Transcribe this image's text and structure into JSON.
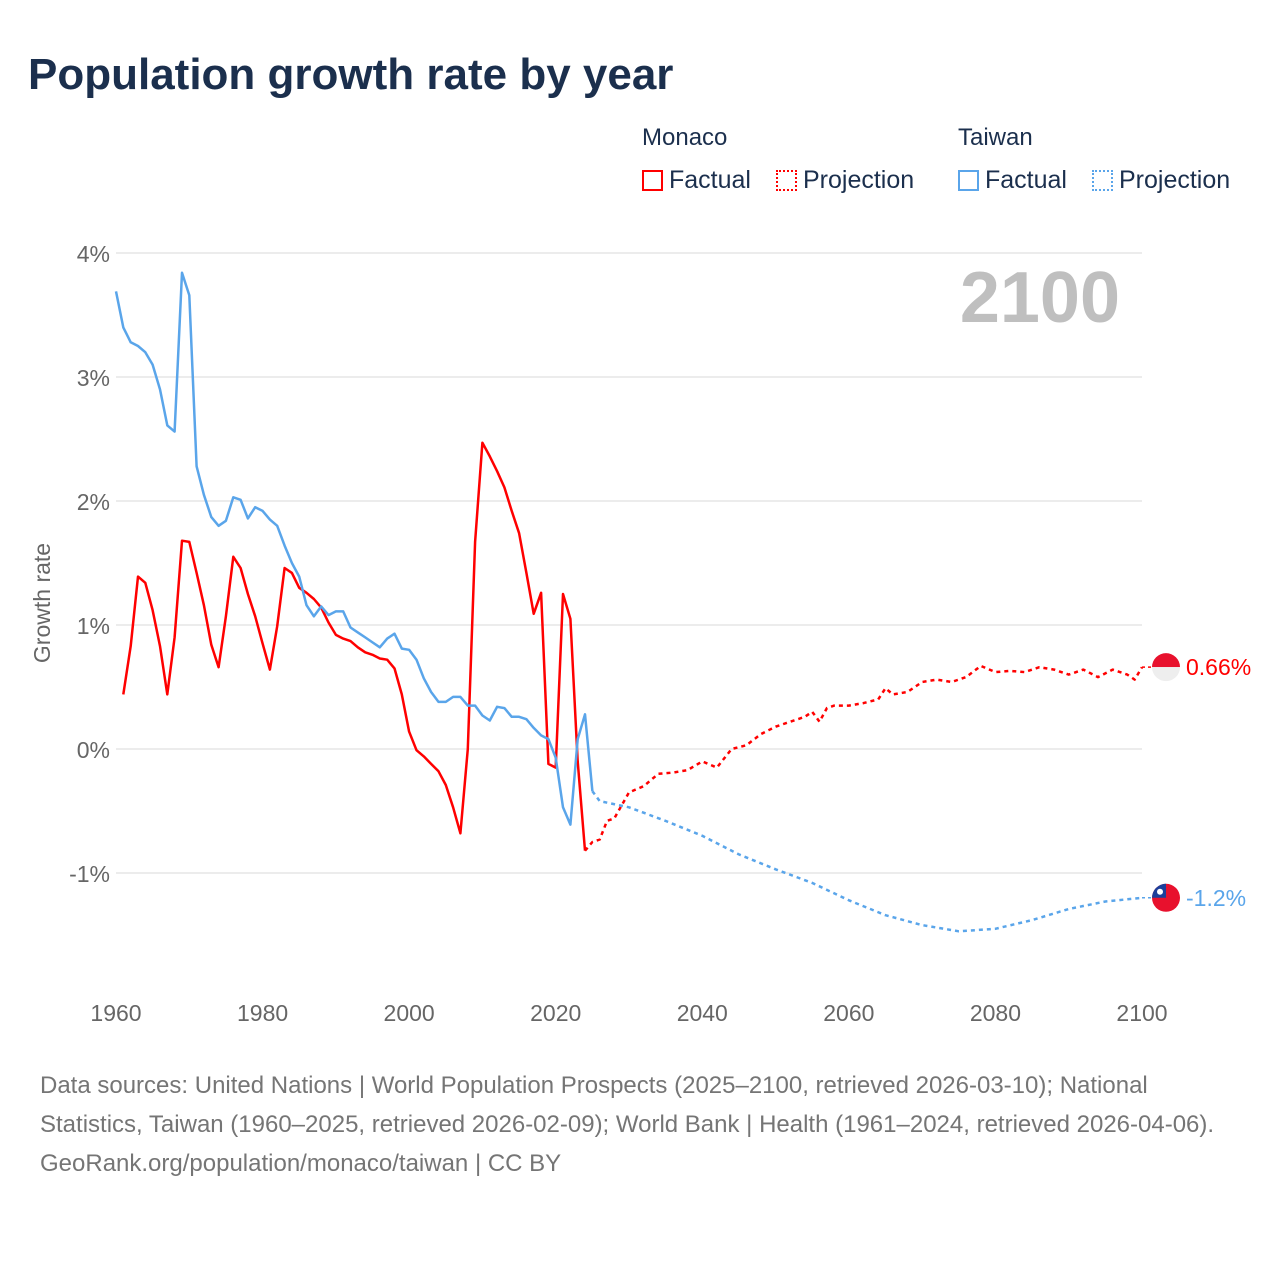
{
  "title": "Population growth rate by year",
  "legend": {
    "groups": [
      {
        "country": "Monaco",
        "factual": "Factual",
        "projection": "Projection",
        "color": "#ff0000"
      },
      {
        "country": "Taiwan",
        "factual": "Factual",
        "projection": "Projection",
        "color": "#5aa5ea"
      }
    ]
  },
  "footer": {
    "sources": "Data sources: United Nations | World Population Prospects (2025–2100, retrieved 2026-03-10); National Statistics, Taiwan (1960–2025, retrieved 2026-02-09); World Bank | Health (1961–2024, retrieved 2026-04-06).",
    "credit": "GeoRank.org/population/monaco/taiwan | CC BY"
  },
  "chart_data": {
    "type": "line",
    "title": "Population growth rate by year",
    "ylabel": "Growth rate",
    "xlabel": "",
    "year_label": "2100",
    "xlim": [
      1960,
      2100
    ],
    "ylim": [
      -1.8,
      4.0
    ],
    "x_ticks": [
      "1960",
      "1980",
      "2000",
      "2020",
      "2040",
      "2060",
      "2080",
      "2100"
    ],
    "y_ticks": [
      {
        "v": 4,
        "label": "4%"
      },
      {
        "v": 3,
        "label": "3%"
      },
      {
        "v": 2,
        "label": "2%"
      },
      {
        "v": 1,
        "label": "1%"
      },
      {
        "v": 0,
        "label": "0%"
      },
      {
        "v": -1,
        "label": "-1%"
      }
    ],
    "grid": true,
    "legend_position": "top-right",
    "series": [
      {
        "name": "Monaco Factual",
        "country": "Monaco",
        "kind": "factual",
        "color": "#ff0000",
        "x": [
          1961,
          1962,
          1963,
          1964,
          1965,
          1966,
          1967,
          1968,
          1969,
          1970,
          1971,
          1972,
          1973,
          1974,
          1975,
          1976,
          1977,
          1978,
          1979,
          1980,
          1981,
          1982,
          1983,
          1984,
          1985,
          1986,
          1987,
          1988,
          1989,
          1990,
          1991,
          1992,
          1993,
          1994,
          1995,
          1996,
          1997,
          1998,
          1999,
          2000,
          2001,
          2002,
          2003,
          2004,
          2005,
          2006,
          2007,
          2008,
          2009,
          2010,
          2011,
          2012,
          2013,
          2014,
          2015,
          2016,
          2017,
          2018,
          2019,
          2020,
          2021,
          2022,
          2023,
          2024
        ],
        "y": [
          0.44,
          0.83,
          1.39,
          1.34,
          1.12,
          0.83,
          0.44,
          0.9,
          1.68,
          1.67,
          1.42,
          1.16,
          0.84,
          0.66,
          1.07,
          1.55,
          1.46,
          1.25,
          1.07,
          0.85,
          0.64,
          0.99,
          1.46,
          1.42,
          1.3,
          1.26,
          1.21,
          1.14,
          1.02,
          0.92,
          0.89,
          0.87,
          0.82,
          0.78,
          0.76,
          0.73,
          0.72,
          0.65,
          0.44,
          0.14,
          -0.01,
          -0.06,
          -0.12,
          -0.18,
          -0.29,
          -0.47,
          -0.68,
          0.0,
          1.67,
          2.47,
          2.36,
          2.24,
          2.11,
          1.92,
          1.74,
          1.42,
          1.09,
          1.26,
          -0.12,
          -0.15,
          1.25,
          1.05,
          -0.1,
          -0.82
        ]
      },
      {
        "name": "Monaco Projection",
        "country": "Monaco",
        "kind": "projection",
        "color": "#ff0000",
        "x": [
          2024,
          2025,
          2026,
          2027,
          2028,
          2030,
          2032,
          2034,
          2036,
          2038,
          2040,
          2042,
          2044,
          2046,
          2048,
          2050,
          2052,
          2054,
          2055,
          2056,
          2057,
          2058,
          2060,
          2062,
          2064,
          2065,
          2066,
          2068,
          2070,
          2072,
          2074,
          2076,
          2078,
          2080,
          2082,
          2084,
          2086,
          2088,
          2090,
          2092,
          2094,
          2096,
          2098,
          2099,
          2100
        ],
        "y": [
          -0.82,
          -0.75,
          -0.73,
          -0.58,
          -0.56,
          -0.35,
          -0.3,
          -0.2,
          -0.19,
          -0.17,
          -0.1,
          -0.15,
          0.0,
          0.03,
          0.12,
          0.18,
          0.22,
          0.26,
          0.3,
          0.22,
          0.33,
          0.35,
          0.35,
          0.37,
          0.4,
          0.49,
          0.44,
          0.46,
          0.54,
          0.56,
          0.54,
          0.58,
          0.67,
          0.62,
          0.63,
          0.62,
          0.66,
          0.64,
          0.6,
          0.64,
          0.58,
          0.64,
          0.6,
          0.56,
          0.66
        ]
      },
      {
        "name": "Taiwan Factual",
        "country": "Taiwan",
        "kind": "factual",
        "color": "#5aa5ea",
        "x": [
          1960,
          1961,
          1962,
          1963,
          1964,
          1965,
          1966,
          1967,
          1968,
          1969,
          1970,
          1971,
          1972,
          1973,
          1974,
          1975,
          1976,
          1977,
          1978,
          1979,
          1980,
          1981,
          1982,
          1983,
          1984,
          1985,
          1986,
          1987,
          1988,
          1989,
          1990,
          1991,
          1992,
          1993,
          1994,
          1995,
          1996,
          1997,
          1998,
          1999,
          2000,
          2001,
          2002,
          2003,
          2004,
          2005,
          2006,
          2007,
          2008,
          2009,
          2010,
          2011,
          2012,
          2013,
          2014,
          2015,
          2016,
          2017,
          2018,
          2019,
          2020,
          2021,
          2022,
          2023,
          2024,
          2025
        ],
        "y": [
          3.69,
          3.4,
          3.28,
          3.25,
          3.2,
          3.1,
          2.9,
          2.61,
          2.56,
          3.84,
          3.66,
          2.28,
          2.05,
          1.87,
          1.8,
          1.84,
          2.03,
          2.01,
          1.86,
          1.95,
          1.92,
          1.85,
          1.8,
          1.64,
          1.5,
          1.39,
          1.16,
          1.07,
          1.15,
          1.08,
          1.11,
          1.11,
          0.98,
          0.94,
          0.9,
          0.86,
          0.82,
          0.89,
          0.93,
          0.81,
          0.8,
          0.72,
          0.57,
          0.46,
          0.38,
          0.38,
          0.42,
          0.42,
          0.35,
          0.35,
          0.27,
          0.23,
          0.34,
          0.33,
          0.26,
          0.26,
          0.24,
          0.17,
          0.11,
          0.08,
          -0.07,
          -0.47,
          -0.61,
          0.08,
          0.28,
          -0.34
        ]
      },
      {
        "name": "Taiwan Projection",
        "country": "Taiwan",
        "kind": "projection",
        "color": "#5aa5ea",
        "x": [
          2025,
          2026,
          2030,
          2035,
          2040,
          2045,
          2050,
          2055,
          2060,
          2065,
          2070,
          2075,
          2080,
          2085,
          2090,
          2095,
          2100
        ],
        "y": [
          -0.34,
          -0.42,
          -0.47,
          -0.58,
          -0.7,
          -0.85,
          -0.97,
          -1.08,
          -1.22,
          -1.34,
          -1.42,
          -1.47,
          -1.45,
          -1.38,
          -1.29,
          -1.23,
          -1.2
        ]
      }
    ],
    "end_labels": [
      {
        "country": "Monaco",
        "label": "0.66%",
        "value": 0.66,
        "color": "#ff0000"
      },
      {
        "country": "Taiwan",
        "label": "-1.2%",
        "value": -1.2,
        "color": "#5aa5ea"
      }
    ]
  }
}
